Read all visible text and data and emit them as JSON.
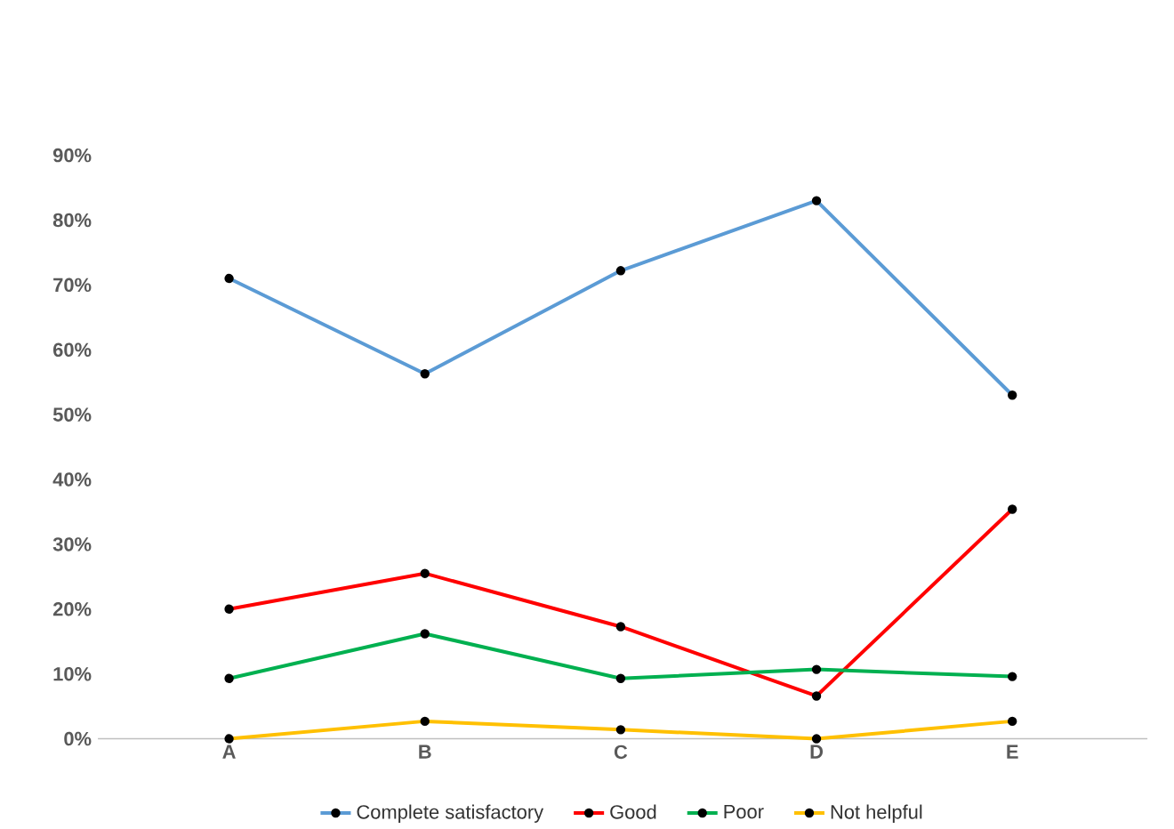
{
  "chart_data": {
    "type": "line",
    "categories": [
      "A",
      "B",
      "C",
      "D",
      "E"
    ],
    "series": [
      {
        "name": "Complete satisfactory",
        "color": "#5b9bd5",
        "values": [
          71,
          56.3,
          72.2,
          83,
          53
        ]
      },
      {
        "name": "Good",
        "color": "#ff0000",
        "values": [
          20,
          25.5,
          17.3,
          6.6,
          35.4
        ]
      },
      {
        "name": "Poor",
        "color": "#00b050",
        "values": [
          9.3,
          16.2,
          9.3,
          10.7,
          9.6
        ]
      },
      {
        "name": "Not helpful",
        "color": "#ffc000",
        "values": [
          0,
          2.7,
          1.4,
          0,
          2.7
        ]
      }
    ],
    "ylim": [
      0,
      90
    ],
    "yticks": [
      {
        "value": 0,
        "label": "0%"
      },
      {
        "value": 10,
        "label": "10%"
      },
      {
        "value": 20,
        "label": "20%"
      },
      {
        "value": 30,
        "label": "30%"
      },
      {
        "value": 40,
        "label": "40%"
      },
      {
        "value": 50,
        "label": "50%"
      },
      {
        "value": 60,
        "label": "60%"
      },
      {
        "value": 70,
        "label": "70%"
      },
      {
        "value": 80,
        "label": "80%"
      },
      {
        "value": 90,
        "label": "90%"
      }
    ],
    "marker": "circle",
    "legend": "bottom",
    "grid": false
  }
}
